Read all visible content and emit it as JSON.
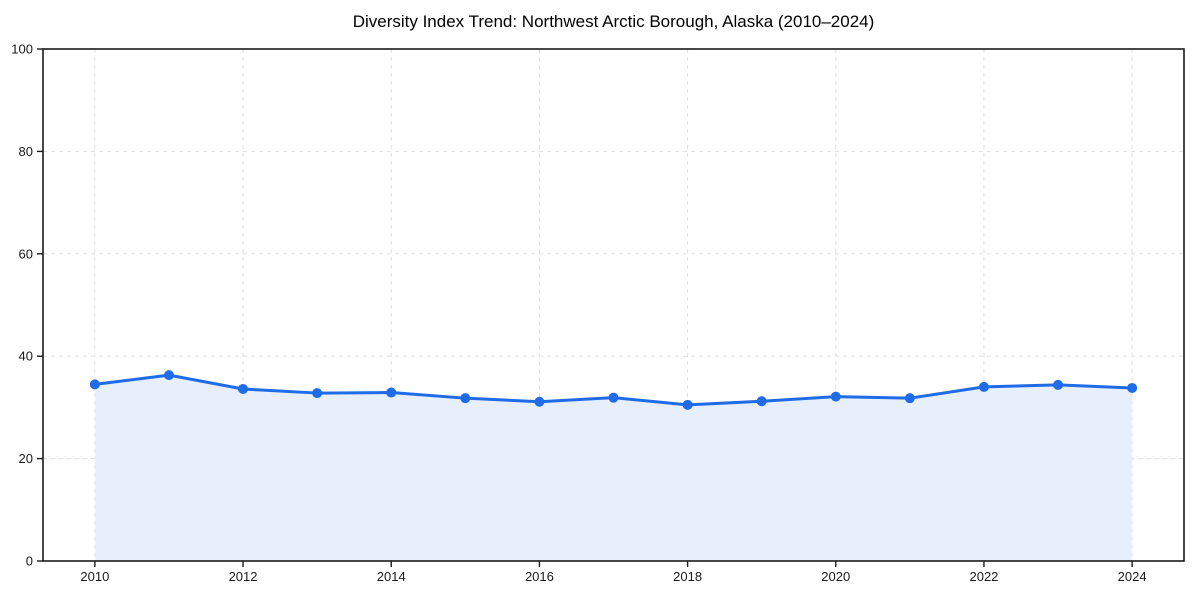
{
  "page": {
    "background": "#ffffff"
  },
  "chart_data": {
    "type": "area",
    "title": "Diversity Index Trend: Northwest Arctic Borough, Alaska (2010–2024)",
    "xlabel": "",
    "ylabel": "",
    "x": [
      2010,
      2011,
      2012,
      2013,
      2014,
      2015,
      2016,
      2017,
      2018,
      2019,
      2020,
      2021,
      2022,
      2023,
      2024
    ],
    "series": [
      {
        "name": "Diversity Index",
        "values": [
          34.5,
          36.3,
          33.6,
          32.8,
          32.9,
          31.8,
          31.1,
          31.9,
          30.5,
          31.2,
          32.1,
          31.8,
          34.0,
          34.4,
          33.8
        ]
      }
    ],
    "xlim": [
      2009.3,
      2024.7
    ],
    "ylim": [
      0,
      100
    ],
    "xticks": [
      2010,
      2012,
      2014,
      2016,
      2018,
      2020,
      2022,
      2024
    ],
    "yticks": [
      0,
      20,
      40,
      60,
      80,
      100
    ],
    "grid": true,
    "grid_style": "dashed",
    "legend": false,
    "marker": "circle",
    "colors": {
      "line": "#1f6be8",
      "marker": "#1f6be8",
      "fill": "#e7effc",
      "grid": "#e0e0e0",
      "spine": "#1a1a1a",
      "tick_text": "#1a1a1a",
      "title_text": "#000000",
      "background": "#ffffff"
    }
  }
}
